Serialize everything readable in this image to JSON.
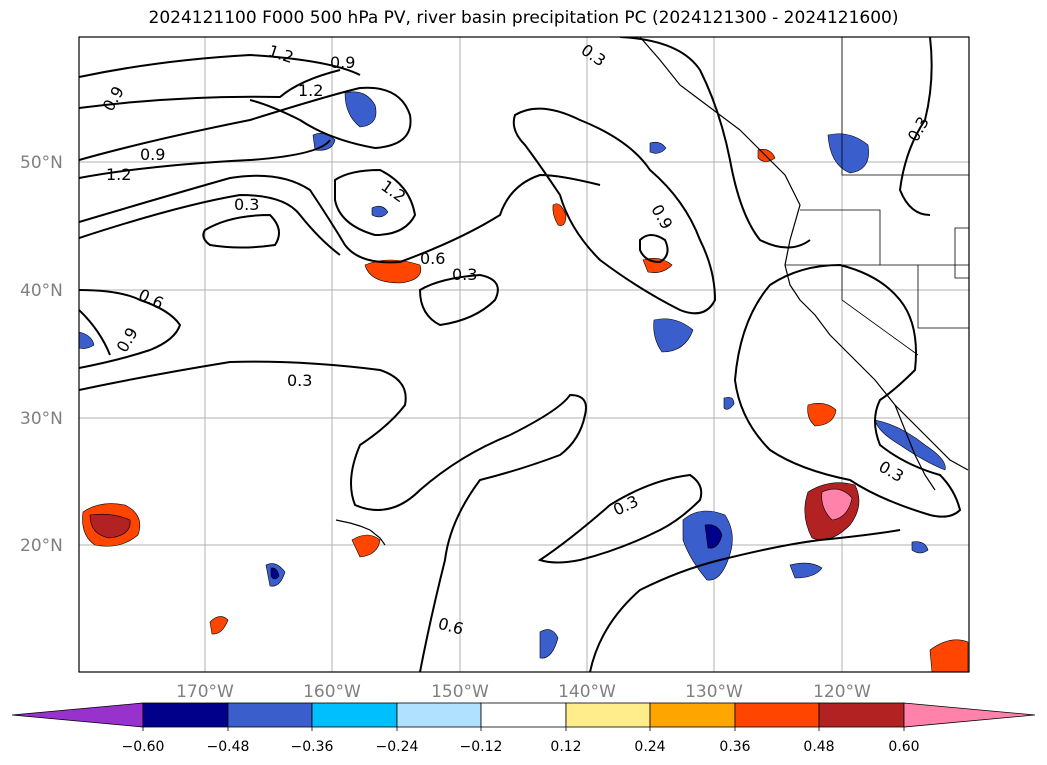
{
  "title": "2024121100 F000 500 hPa PV, river basin precipitation PC (2024121300 - 2024121600)",
  "lat_labels": [
    "50°N",
    "40°N",
    "30°N",
    "20°N"
  ],
  "lon_labels": [
    "170°W",
    "160°W",
    "150°W",
    "140°W",
    "130°W",
    "120°W"
  ],
  "contour_labels": [
    "1.2",
    "0.9",
    "1.2",
    "0.9",
    "1.2",
    "0.3",
    "1.2",
    "0.6",
    "0.3",
    "0.9",
    "0.6",
    "0.9",
    "0.3",
    "0.3",
    "0.3",
    "0.6",
    "0.3",
    "0.3",
    "0.9"
  ],
  "colorbar": {
    "ticks": [
      "−0.60",
      "−0.48",
      "−0.36",
      "−0.24",
      "−0.12",
      "0.12",
      "0.24",
      "0.36",
      "0.48",
      "0.60"
    ],
    "colors": [
      "#9932cc",
      "#00008b",
      "#3a5fcd",
      "#00bfff",
      "#b0e2ff",
      "#ffffff",
      "#ffec8b",
      "#ffa500",
      "#ff4500",
      "#b22222",
      "#ff82ab"
    ]
  }
}
